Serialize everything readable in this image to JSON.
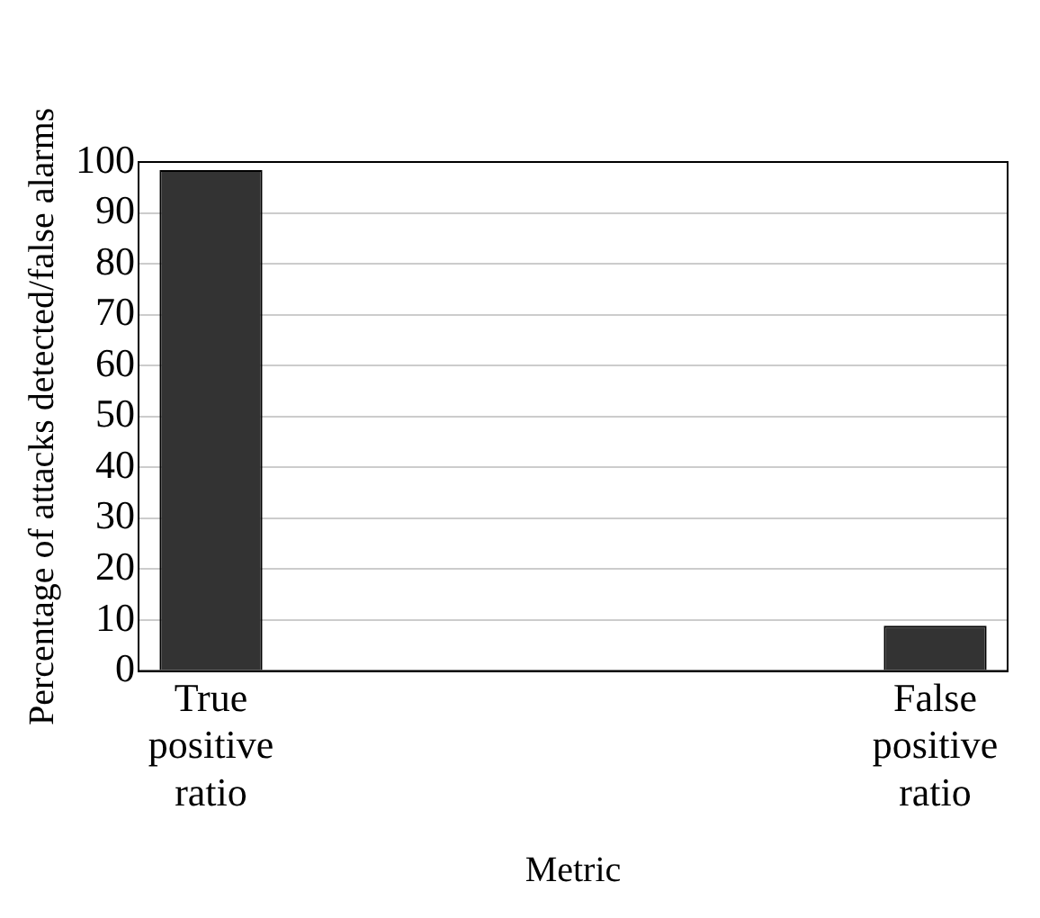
{
  "chart_data": {
    "type": "bar",
    "xlabel": "Metric",
    "ylabel": "Percentage of attacks detected/false alarms",
    "categories": [
      "True positive ratio",
      "False positive ratio"
    ],
    "values": [
      98.4,
      8.9
    ],
    "color": "#333333",
    "ylim": [
      0,
      100
    ],
    "yticks": [
      0,
      10,
      20,
      30,
      40,
      50,
      60,
      70,
      80,
      90,
      100
    ],
    "grid": "y",
    "legend": false
  }
}
